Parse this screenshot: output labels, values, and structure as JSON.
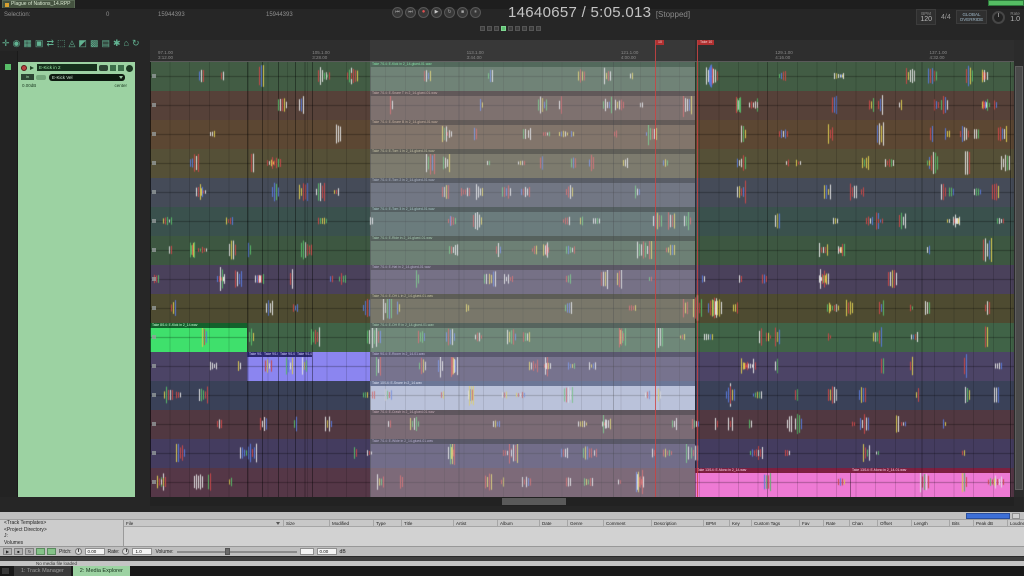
{
  "window": {
    "title": "Plague of Nations_14.RPP"
  },
  "selection_bar": {
    "label": "Selection:",
    "start": "0",
    "end": "15944393",
    "length": "15944393"
  },
  "transport": {
    "buttons": [
      {
        "name": "go-to-start-button",
        "glyph": "⏮"
      },
      {
        "name": "go-to-end-button",
        "glyph": "⏭"
      },
      {
        "name": "record-button",
        "glyph": "●"
      },
      {
        "name": "play-button",
        "glyph": "▶"
      },
      {
        "name": "repeat-button",
        "glyph": "↻"
      },
      {
        "name": "stop-button",
        "glyph": "■"
      },
      {
        "name": "pause-button",
        "glyph": "⏸"
      }
    ],
    "time_display": "14640657 / 5:05.013",
    "status": "[Stopped]",
    "mini_button_count": 9,
    "mini_active_index": 3,
    "bpm_label": "BPM",
    "bpm_value": "120",
    "time_signature": "4/4",
    "automation_line1": "GLOBAL",
    "automation_line2": "OVERRIDE",
    "rate_label": "Rate",
    "rate_value": "1.0"
  },
  "main_toolbar": {
    "icons": [
      {
        "name": "mouse-pointer-icon",
        "glyph": "✛"
      },
      {
        "name": "envelope-icon",
        "glyph": "◉"
      },
      {
        "name": "grid-icon",
        "glyph": "▦"
      },
      {
        "name": "snap-icon",
        "glyph": "▣"
      },
      {
        "name": "ripple-edit-icon",
        "glyph": "⇄"
      },
      {
        "name": "lock-icon",
        "glyph": "⬚"
      },
      {
        "name": "metronome-icon",
        "glyph": "◬"
      },
      {
        "name": "crossfade-icon",
        "glyph": "◩"
      },
      {
        "name": "item-group-icon",
        "glyph": "▩"
      },
      {
        "name": "media-item-icon",
        "glyph": "▤"
      },
      {
        "name": "fx-icon",
        "glyph": "✱"
      },
      {
        "name": "project-home-icon",
        "glyph": "⌂"
      },
      {
        "name": "undo-icon",
        "glyph": "↻"
      }
    ]
  },
  "tcp": {
    "track_name": "E-Kick in 2",
    "midi_chip": "in",
    "env_dropdown": "E-Kick Vel",
    "volume": "0.00dB",
    "pan": "center"
  },
  "ruler": {
    "labels": [
      {
        "bar": "97.1.00",
        "time": "3:12.00"
      },
      {
        "bar": "105.1.00",
        "time": "3:28.00"
      },
      {
        "bar": "113.1.00",
        "time": "3:44.00"
      },
      {
        "bar": "121.1.00",
        "time": "4:00.00"
      },
      {
        "bar": "129.1.00",
        "time": "4:16.00"
      },
      {
        "bar": "137.1.00",
        "time": "4:32.00"
      }
    ],
    "markers": [
      {
        "label": "10",
        "pos": 505
      },
      {
        "label": "Take 10",
        "pos": 547
      }
    ]
  },
  "arrange": {
    "cuts": [
      0,
      97,
      112,
      128,
      145,
      162,
      220,
      545,
      860,
      864
    ],
    "selection": {
      "from": 220,
      "to": 545
    },
    "wave_colors": [
      "#c84848",
      "#c84848",
      "#e0e0e0",
      "#e0e0e0",
      "#5878d8",
      "#d8c850",
      "#58b868"
    ],
    "lanes": [
      {
        "bg": "#3a523b",
        "item": "#425c44",
        "labels": [
          {
            "at": 220,
            "text": "Take 7/14: E-Kick in 2_14-glued-01.wav",
            "bg": "#17361d",
            "fg": "#5fe286"
          }
        ]
      },
      {
        "bg": "#4c3a34",
        "item": "#564139",
        "labels": [
          {
            "at": 220,
            "text": "Take 7/14: E-Snare T in 2_14-glued-01.wav",
            "bg": "#2c1d19",
            "fg": "#c09a90"
          }
        ]
      },
      {
        "bg": "#523f2e",
        "item": "#5c4733",
        "labels": [
          {
            "at": 220,
            "text": "Take 7/14: E-Snare B in 2_14-glued-01.wav",
            "bg": "#2e2117",
            "fg": "#c8a584"
          }
        ]
      },
      {
        "bg": "#4c4631",
        "item": "#555037",
        "labels": [
          {
            "at": 220,
            "text": "Take 7/14: E-Tom 1 in 2_14-glued-01.wav",
            "bg": "#2a2717",
            "fg": "#bfb888"
          }
        ]
      },
      {
        "bg": "#3e434e",
        "item": "#454b58",
        "labels": [
          {
            "at": 220,
            "text": "Take 7/14: E-Tom 2 in 2_14-glued-01.wav",
            "bg": "#20242c",
            "fg": "#9aa6b8"
          }
        ]
      },
      {
        "bg": "#334946",
        "item": "#3a514d",
        "labels": [
          {
            "at": 220,
            "text": "Take 7/14: E-Tom 3 in 2_14-glued-01.wav",
            "bg": "#1a2826",
            "fg": "#8fc0b8"
          }
        ]
      },
      {
        "bg": "#364e3a",
        "item": "#3d5741",
        "labels": [
          {
            "at": 220,
            "text": "Take 7/14: E-Ride in 2_14-glued-01.wav",
            "bg": "#1b2a1e",
            "fg": "#92c49a"
          }
        ]
      },
      {
        "bg": "#433a51",
        "item": "#4a415b",
        "labels": [
          {
            "at": 220,
            "text": "Take 7/14: E-Hat in 2_14-glued-01.wav",
            "bg": "#241e2c",
            "fg": "#a89ac0"
          }
        ]
      },
      {
        "bg": "#45432c",
        "item": "#4e4b31",
        "labels": [
          {
            "at": 220,
            "text": "Take 7/14: E-OH L in 2_14-glued-01.wav",
            "bg": "#252414",
            "fg": "#bcb780"
          }
        ]
      },
      {
        "bg": "#3a5a40",
        "item": "#406347",
        "bright": {
          "from": 0,
          "to": 97,
          "color": "#3fe06c"
        },
        "labels": [
          {
            "at": 0,
            "text": "Take 8/14: E-Kick in 2_14.wav",
            "bg": "#14602c",
            "fg": "#c8ffd6"
          },
          {
            "at": 220,
            "text": "Take 7/14: E-OH R in 2_14-glued-01.wav",
            "bg": "#1b2e20",
            "fg": "#90c69a"
          }
        ]
      },
      {
        "bg": "#443d5c",
        "item": "#4c4466",
        "bright": {
          "from": 97,
          "to": 220,
          "color": "#8b85f0"
        },
        "labels": [
          {
            "at": 97,
            "text": "Take 9/14",
            "bg": "#2c2870",
            "fg": "#d0ccff"
          },
          {
            "at": 112,
            "text": "Take 9/14",
            "bg": "#2c2870",
            "fg": "#d0ccff"
          },
          {
            "at": 128,
            "text": "Take 9/14",
            "bg": "#2c2870",
            "fg": "#d0ccff"
          },
          {
            "at": 145,
            "text": "Take 9/14: E-Room in 2_14.wav",
            "bg": "#2c2870",
            "fg": "#d0ccff"
          },
          {
            "at": 220,
            "text": "Take 9/14: E-Room in 2_14-01.wav",
            "bg": "#221e3a",
            "fg": "#b0a8d8"
          }
        ]
      },
      {
        "bg": "#343a4e",
        "item": "#3a4158",
        "bright": {
          "from": 220,
          "to": 545,
          "color": "#aeb8d6"
        },
        "labels": [
          {
            "at": 220,
            "text": "Take 10/14: E-Snare in 2_14.wav",
            "bg": "#3c4a74",
            "fg": "#dce4f8"
          }
        ]
      },
      {
        "bg": "#48323a",
        "item": "#513841",
        "labels": [
          {
            "at": 220,
            "text": "Take 7/14: E-Crash in 2_14-glued-01.wav",
            "bg": "#281a1f",
            "fg": "#c095a2"
          }
        ]
      },
      {
        "bg": "#3d3655",
        "item": "#443c5f",
        "labels": [
          {
            "at": 220,
            "text": "Take 7/14: E-Wide in 2_14-glued-01.wav",
            "bg": "#201c2e",
            "fg": "#a79cc8"
          }
        ]
      },
      {
        "bg": "#4c3140",
        "item": "#553747",
        "bright": {
          "from": 545,
          "to": 860,
          "color": "#ee7ad4",
          "split": 700
        },
        "labels": [
          {
            "at": 545,
            "text": "Take 13/14: E-Mono in 2_14.wav",
            "bg": "#7c2040",
            "fg": "#ffd2ea"
          },
          {
            "at": 700,
            "text": "Take 13/14: E-Mono in 2_14-01.wav",
            "bg": "#7c2040",
            "fg": "#ffd2ea"
          }
        ]
      }
    ]
  },
  "media_explorer": {
    "toolbar_icons": [
      {
        "name": "back-icon",
        "glyph": "◄"
      },
      {
        "name": "forward-icon",
        "glyph": "►"
      },
      {
        "name": "folder-up-icon",
        "glyph": "▲"
      },
      {
        "name": "refresh-icon",
        "glyph": "↻"
      }
    ],
    "sidebar": [
      "<Track Templates>",
      "<Project Directory>",
      "J:",
      "Volumes"
    ],
    "columns": [
      "File",
      "Size",
      "Modified",
      "Type",
      "Title",
      "Artist",
      "Album",
      "Date",
      "Genre",
      "Comment",
      "Description",
      "BPM",
      "Key",
      "Custom Tags",
      "Fav",
      "Rate",
      "Chan",
      "Offset",
      "Length",
      "Bits",
      "Peak dB",
      "Loudness"
    ],
    "controls": {
      "buttons": [
        {
          "name": "preview-play-button",
          "glyph": "▶"
        },
        {
          "name": "preview-stop-button",
          "glyph": "■"
        },
        {
          "name": "preview-repeat-button",
          "glyph": "↻"
        }
      ],
      "toggles": [
        {
          "name": "auto-play-toggle"
        },
        {
          "name": "start-on-bar-toggle"
        }
      ],
      "pitch_label": "Pitch:",
      "pitch_value": "0.00",
      "rate_label": "Rate:",
      "rate_value": "1.0",
      "volume_label": "Volume:",
      "volume_value": "0.00",
      "db_label": "dB"
    },
    "status": "No media file loaded"
  },
  "tabbar": {
    "tabs": [
      {
        "label": "1: Track Manager",
        "active": false
      },
      {
        "label": "2: Media Explorer",
        "active": true
      }
    ]
  }
}
